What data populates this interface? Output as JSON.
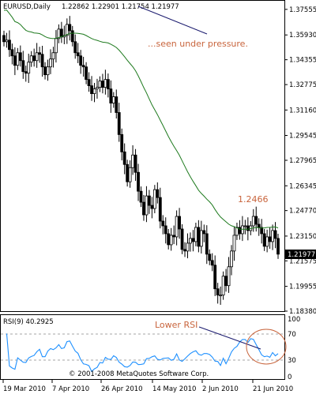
{
  "header": {
    "symbol": "EURUSD,Daily",
    "ohlc": "1.22862 1.22901 1.21754 1.21977"
  },
  "annotations": {
    "pressure": "...seen under pressure.",
    "ma_value": "1.2466",
    "lower_rsi": "Lower RSI",
    "copyright": "© 2001-2008 MetaQuotes Software Corp.",
    "colors": {
      "annotation": "#c8643c",
      "ma": "#1e7a1e",
      "rsi": "#1e90ff",
      "current": "#000000"
    }
  },
  "price_axis": {
    "ticks": [
      "1.37555",
      "1.35930",
      "1.34355",
      "1.32775",
      "1.31160",
      "1.29545",
      "1.27965",
      "1.26345",
      "1.24770",
      "1.23150",
      "1.21575",
      "1.19955",
      "1.18380"
    ],
    "current": "1.21977"
  },
  "rsi_panel": {
    "label": "RSI(9) 40.2925",
    "ticks": [
      "100",
      "70",
      "30",
      "0"
    ]
  },
  "date_axis": {
    "labels": [
      "19 Mar 2010",
      "7 Apr 2010",
      "26 Apr 2010",
      "14 May 2010",
      "2 Jun 2010",
      "21 Jun 2010"
    ]
  },
  "chart_data": {
    "type": "candlestick",
    "symbol": "EURUSD",
    "timeframe": "Daily",
    "ylim": [
      1.1838,
      1.3805
    ],
    "last_close": 1.21977,
    "ohlc_close_series": [
      1.355,
      1.356,
      1.35,
      1.346,
      1.34,
      1.348,
      1.343,
      1.336,
      1.335,
      1.342,
      1.346,
      1.343,
      1.348,
      1.347,
      1.339,
      1.334,
      1.339,
      1.344,
      1.348,
      1.357,
      1.363,
      1.358,
      1.359,
      1.366,
      1.362,
      1.355,
      1.348,
      1.346,
      1.34,
      1.339,
      1.331,
      1.327,
      1.322,
      1.325,
      1.326,
      1.33,
      1.326,
      1.331,
      1.325,
      1.316,
      1.32,
      1.31,
      1.296,
      1.285,
      1.277,
      1.266,
      1.275,
      1.283,
      1.272,
      1.26,
      1.253,
      1.245,
      1.257,
      1.251,
      1.249,
      1.261,
      1.256,
      1.241,
      1.238,
      1.233,
      1.226,
      1.232,
      1.231,
      1.244,
      1.236,
      1.223,
      1.222,
      1.227,
      1.23,
      1.228,
      1.237,
      1.225,
      1.235,
      1.233,
      1.22,
      1.216,
      1.213,
      1.198,
      1.194,
      1.194,
      1.206,
      1.2,
      1.212,
      1.222,
      1.232,
      1.237,
      1.233,
      1.238,
      1.238,
      1.235,
      1.238,
      1.244,
      1.239,
      1.237,
      1.233,
      1.225,
      1.231,
      1.228,
      1.235,
      1.23,
      1.22
    ],
    "ma_value": 1.2466,
    "rsi": {
      "period": 9,
      "last": 40.2925,
      "ylim": [
        0,
        100
      ],
      "levels": [
        30,
        70
      ]
    }
  }
}
